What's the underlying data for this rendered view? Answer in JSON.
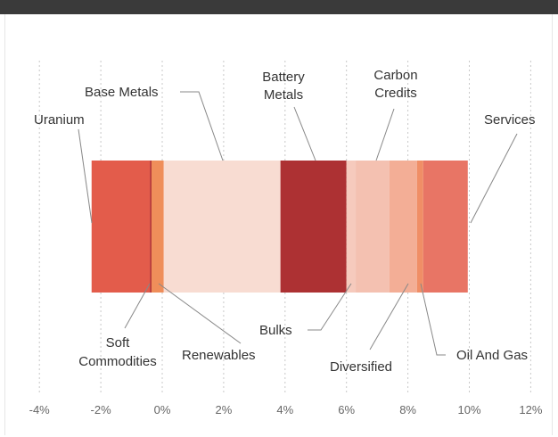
{
  "chart_data": {
    "type": "bar",
    "orientation": "horizontal-stacked",
    "x_ticks": [
      "-4%",
      "-2%",
      "0%",
      "2%",
      "4%",
      "6%",
      "8%",
      "10%",
      "12%"
    ],
    "xlim": [
      -4,
      12
    ],
    "grid": true,
    "segments": [
      {
        "name": "Uranium",
        "start": -2.3,
        "end": -0.4,
        "color": "#e35c4b"
      },
      {
        "name": "Soft Commodities",
        "start": -0.4,
        "end": -0.35,
        "color": "#b0282a"
      },
      {
        "name": "Renewables",
        "start": -0.35,
        "end": 0.05,
        "color": "#ef8e5a"
      },
      {
        "name": "Base Metals",
        "start": 0.05,
        "end": 3.85,
        "color": "#f8dcd2"
      },
      {
        "name": "Battery Metals",
        "start": 3.85,
        "end": 6.0,
        "color": "#ad3133"
      },
      {
        "name": "Bulks",
        "start": 6.0,
        "end": 6.3,
        "color": "#f6cabd"
      },
      {
        "name": "Carbon Credits",
        "start": 6.3,
        "end": 7.4,
        "color": "#f4c1b1"
      },
      {
        "name": "Diversified",
        "start": 7.4,
        "end": 8.3,
        "color": "#f3ae96"
      },
      {
        "name": "Oil And Gas",
        "start": 8.3,
        "end": 8.5,
        "color": "#f08e66"
      },
      {
        "name": "Services",
        "start": 8.5,
        "end": 9.95,
        "color": "#e87565"
      }
    ]
  },
  "labels": {
    "uranium": "Uranium",
    "base_metals": "Base Metals",
    "battery_metals_1": "Battery",
    "battery_metals_2": "Metals",
    "carbon_credits_1": "Carbon",
    "carbon_credits_2": "Credits",
    "services": "Services",
    "soft_commodities_1": "Soft",
    "soft_commodities_2": "Commodities",
    "renewables": "Renewables",
    "bulks": "Bulks",
    "diversified": "Diversified",
    "oil_and_gas": "Oil And Gas"
  }
}
